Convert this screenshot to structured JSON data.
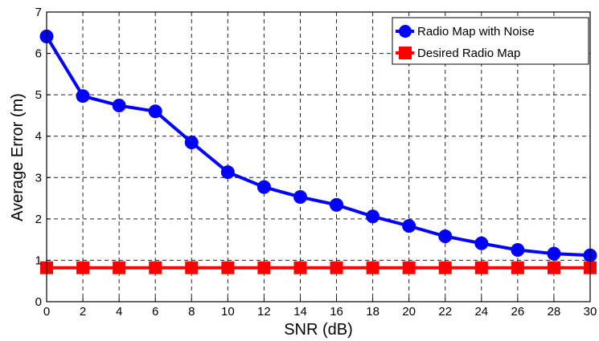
{
  "chart_data": {
    "type": "line",
    "xlabel": "SNR (dB)",
    "ylabel": "Average Error (m)",
    "xlim": [
      0,
      30
    ],
    "ylim": [
      0,
      7
    ],
    "xticks": [
      "0",
      "2",
      "4",
      "6",
      "8",
      "10",
      "12",
      "14",
      "16",
      "18",
      "20",
      "22",
      "24",
      "26",
      "28",
      "30"
    ],
    "yticks": [
      "0",
      "1",
      "2",
      "3",
      "4",
      "5",
      "6",
      "7"
    ],
    "grid": true,
    "legend_position": "top-right",
    "x": [
      0,
      2,
      4,
      6,
      8,
      10,
      12,
      14,
      16,
      18,
      20,
      22,
      24,
      26,
      28,
      30
    ],
    "series": [
      {
        "name": "Radio Map with Noise",
        "color": "#0000ff",
        "marker": "circle",
        "values": [
          6.41,
          4.97,
          4.74,
          4.6,
          3.85,
          3.13,
          2.77,
          2.53,
          2.34,
          2.06,
          1.83,
          1.58,
          1.41,
          1.25,
          1.16,
          1.12
        ]
      },
      {
        "name": "Desired Radio Map",
        "color": "#ff0000",
        "marker": "square",
        "values": [
          0.82,
          0.82,
          0.82,
          0.82,
          0.82,
          0.82,
          0.82,
          0.82,
          0.82,
          0.82,
          0.82,
          0.82,
          0.82,
          0.82,
          0.82,
          0.82
        ]
      }
    ]
  }
}
